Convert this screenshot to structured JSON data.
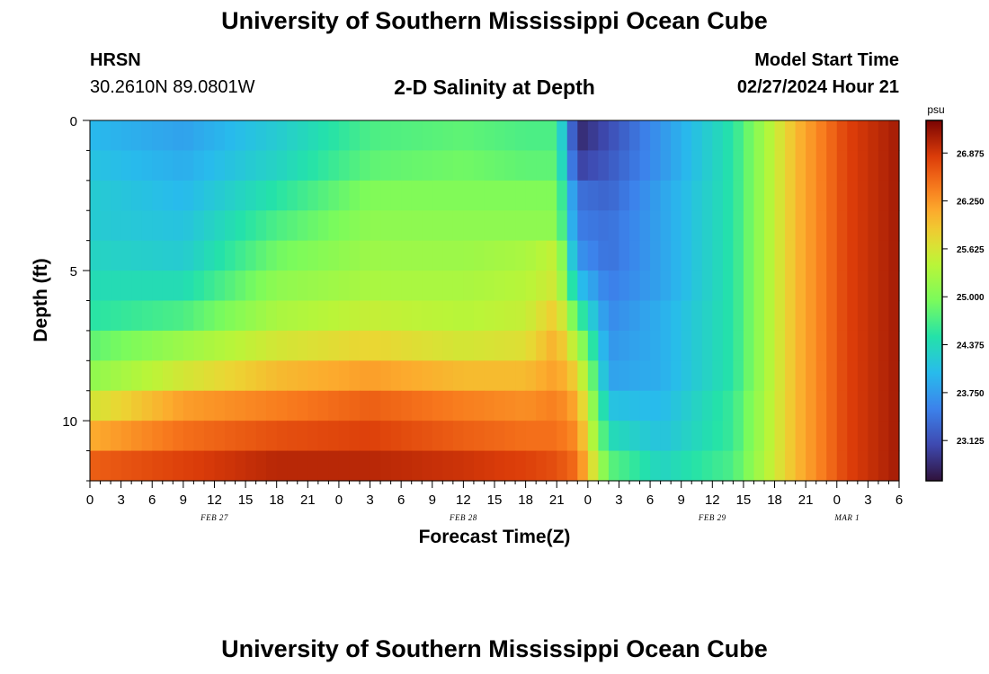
{
  "header": {
    "title": "University of Southern Mississippi Ocean Cube",
    "station": "HRSN",
    "coordinates": "30.2610N  89.0801W",
    "subtitle": "2-D Salinity at Depth",
    "model_start_label": "Model Start Time",
    "model_start_value": "02/27/2024 Hour 21"
  },
  "footer": {
    "title": "University of Southern Mississippi Ocean Cube"
  },
  "chart_data": {
    "type": "heatmap",
    "xlabel": "Forecast Time(Z)",
    "ylabel": "Depth (ft)",
    "x_range_hours": [
      0,
      78
    ],
    "y_range_ft": [
      0,
      12
    ],
    "x_tick_labels": [
      "0",
      "3",
      "6",
      "9",
      "12",
      "15",
      "18",
      "21",
      "0",
      "3",
      "6",
      "9",
      "12",
      "15",
      "18",
      "21",
      "0",
      "3",
      "6",
      "9",
      "12",
      "15",
      "18",
      "21",
      "0",
      "3",
      "6"
    ],
    "y_tick_labels": [
      "0",
      "5",
      "10"
    ],
    "date_labels": [
      {
        "label": "FEB 27",
        "hour": 12
      },
      {
        "label": "FEB 28",
        "hour": 36
      },
      {
        "label": "MAR 1",
        "hour": 73
      },
      {
        "label": "FEB 29",
        "hour": 60
      }
    ],
    "colorbar": {
      "unit": "psu",
      "min": 22.6,
      "max": 27.3,
      "tick_labels": [
        "26.875",
        "26.250",
        "25.625",
        "25.000",
        "24.375",
        "23.750",
        "23.125"
      ],
      "tick_values": [
        26.875,
        26.25,
        25.625,
        25.0,
        24.375,
        23.75,
        23.125
      ]
    },
    "depth_rows_ft": [
      0.5,
      1.5,
      2.5,
      3.5,
      4.5,
      5.5,
      6.5,
      7.5,
      8.5,
      9.5,
      10.5,
      11.5
    ],
    "key_hours": [
      0,
      9,
      18,
      27,
      36,
      42,
      45,
      47,
      50,
      55,
      62,
      68,
      73,
      78
    ],
    "salinity_psu": [
      [
        24.0,
        23.8,
        24.2,
        24.7,
        24.8,
        24.7,
        24.7,
        22.8,
        23.1,
        23.7,
        24.5,
        26.0,
        26.8,
        27.1
      ],
      [
        24.1,
        23.9,
        24.3,
        24.8,
        24.9,
        24.8,
        24.8,
        23.0,
        23.2,
        23.7,
        24.5,
        26.0,
        26.8,
        27.1
      ],
      [
        24.2,
        24.0,
        24.5,
        25.0,
        25.0,
        25.0,
        25.0,
        23.4,
        23.3,
        23.8,
        24.5,
        26.0,
        26.8,
        27.1
      ],
      [
        24.2,
        24.1,
        24.7,
        25.1,
        25.1,
        25.1,
        25.1,
        23.5,
        23.4,
        23.8,
        24.5,
        26.0,
        26.8,
        27.1
      ],
      [
        24.3,
        24.2,
        24.9,
        25.2,
        25.2,
        25.3,
        25.5,
        23.7,
        23.4,
        23.8,
        24.5,
        26.0,
        26.8,
        27.1
      ],
      [
        24.4,
        24.4,
        25.1,
        25.3,
        25.3,
        25.4,
        25.6,
        24.1,
        23.5,
        23.8,
        24.5,
        26.0,
        26.8,
        27.1
      ],
      [
        24.5,
        24.7,
        25.3,
        25.5,
        25.4,
        25.5,
        25.9,
        24.7,
        23.6,
        23.9,
        24.5,
        26.0,
        26.8,
        27.1
      ],
      [
        24.8,
        25.2,
        25.6,
        25.8,
        25.6,
        25.7,
        26.1,
        25.3,
        23.7,
        23.9,
        24.5,
        26.0,
        26.8,
        27.1
      ],
      [
        25.1,
        25.6,
        26.0,
        26.2,
        26.0,
        26.0,
        26.2,
        25.8,
        23.8,
        23.9,
        24.5,
        26.0,
        26.8,
        27.1
      ],
      [
        25.6,
        26.2,
        26.4,
        26.6,
        26.4,
        26.3,
        26.4,
        26.1,
        24.1,
        24.0,
        24.6,
        26.0,
        26.8,
        27.1
      ],
      [
        26.1,
        26.5,
        26.7,
        26.8,
        26.6,
        26.5,
        26.5,
        26.3,
        24.4,
        24.1,
        24.6,
        26.0,
        26.8,
        27.1
      ],
      [
        26.6,
        26.8,
        27.0,
        27.0,
        26.9,
        26.8,
        26.7,
        26.5,
        24.8,
        24.3,
        24.7,
        26.0,
        26.8,
        27.1
      ]
    ]
  }
}
